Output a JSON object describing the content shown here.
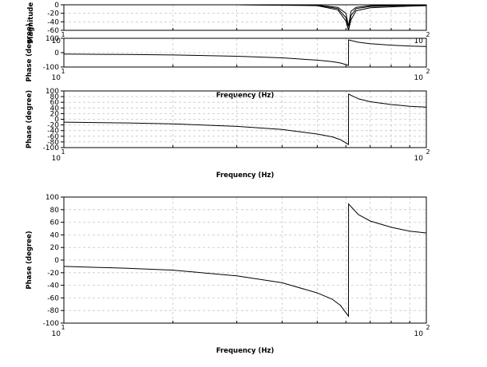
{
  "chart_data": [
    {
      "type": "line",
      "ylabel": "Magnitude (d",
      "xscale": "log",
      "xlim": [
        10,
        100
      ],
      "ylim": [
        -60,
        0
      ],
      "yticks": [
        0,
        -20,
        -40,
        -60
      ],
      "grid": true,
      "x_tick_labels": [
        "10",
        "1",
        "10",
        "2"
      ],
      "series": [
        {
          "x": [
            10,
            30,
            50,
            57,
            60,
            61,
            62,
            64,
            70,
            85,
            100
          ],
          "y": [
            0,
            0,
            -1,
            -6,
            -20,
            -50,
            -15,
            -6,
            -2,
            -1,
            0
          ]
        },
        {
          "x": [
            10,
            30,
            50,
            57,
            60,
            61,
            62,
            64,
            70,
            85,
            100
          ],
          "y": [
            0,
            0,
            -1,
            -9,
            -30,
            -60,
            -25,
            -9,
            -4,
            -2,
            -1
          ]
        },
        {
          "x": [
            10,
            30,
            50,
            57,
            60,
            61,
            62,
            64,
            70,
            85,
            100
          ],
          "y": [
            0,
            0,
            -2,
            -12,
            -38,
            -60,
            -35,
            -14,
            -7,
            -4,
            -2
          ]
        }
      ]
    },
    {
      "type": "line",
      "ylabel": "Phase (degree)",
      "xscale": "log",
      "xlim": [
        10,
        100
      ],
      "ylim": [
        -100,
        100
      ],
      "yticks": [
        100,
        0,
        -100
      ],
      "grid": true,
      "xlabel": "Frequency (Hz)",
      "x_tick_labels": [
        "10",
        "1",
        "10",
        "2"
      ],
      "series": [
        {
          "x": [
            10,
            15,
            20,
            30,
            40,
            50,
            55,
            58,
            61,
            61.01,
            65,
            70,
            80,
            90,
            100
          ],
          "y": [
            -10,
            -13,
            -16,
            -25,
            -36,
            -52,
            -62,
            -72,
            -89,
            89,
            72,
            62,
            52,
            46,
            43
          ]
        }
      ]
    },
    {
      "type": "line",
      "ylabel": "Phase (degree)",
      "xscale": "log",
      "xlim": [
        10,
        100
      ],
      "ylim": [
        -100,
        100
      ],
      "yticks": [
        100,
        80,
        60,
        40,
        20,
        0,
        -20,
        -40,
        -60,
        -80,
        -100
      ],
      "grid": true,
      "xlabel": "Frequency (Hz)",
      "x_tick_labels": [
        "10",
        "1",
        "10",
        "2"
      ],
      "series": [
        {
          "x": [
            10,
            15,
            20,
            30,
            40,
            50,
            55,
            58,
            61,
            61.01,
            65,
            70,
            80,
            90,
            100
          ],
          "y": [
            -10,
            -13,
            -16,
            -25,
            -36,
            -52,
            -62,
            -72,
            -89,
            89,
            72,
            62,
            52,
            46,
            43
          ]
        }
      ]
    },
    {
      "type": "line",
      "ylabel": "Phase (degree)",
      "xscale": "log",
      "xlim": [
        10,
        100
      ],
      "ylim": [
        -100,
        100
      ],
      "yticks": [
        100,
        80,
        60,
        40,
        20,
        0,
        -20,
        -40,
        -60,
        -80,
        -100
      ],
      "grid": true,
      "xlabel": "Frequency (Hz)",
      "x_tick_labels": [
        "10",
        "1",
        "10",
        "2"
      ],
      "series": [
        {
          "x": [
            10,
            15,
            20,
            30,
            40,
            50,
            55,
            58,
            61,
            61.01,
            65,
            70,
            80,
            90,
            100
          ],
          "y": [
            -10,
            -13,
            -16,
            -25,
            -36,
            -52,
            -62,
            -72,
            -89,
            89,
            72,
            62,
            52,
            46,
            43
          ]
        }
      ]
    }
  ]
}
